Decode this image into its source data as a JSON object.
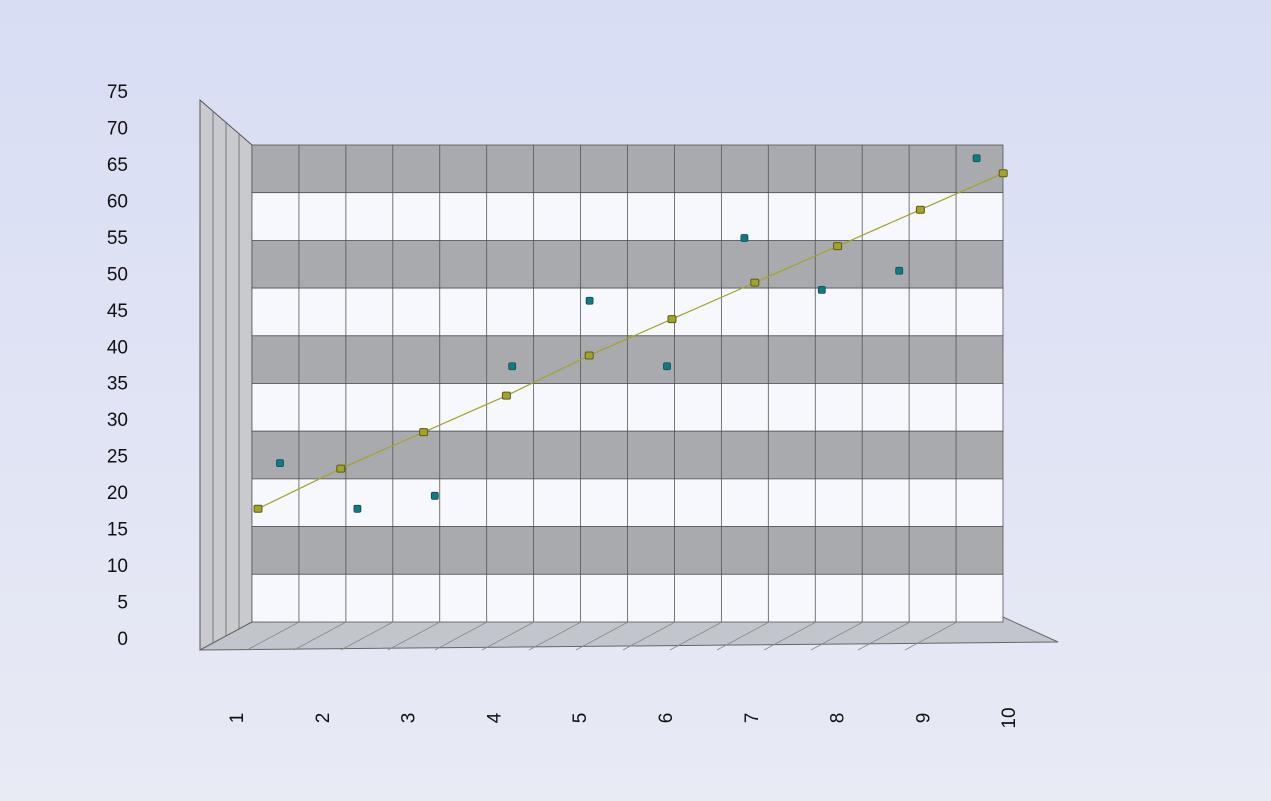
{
  "chart_data": {
    "type": "scatter-line",
    "categories": [
      "1",
      "2",
      "3",
      "4",
      "5",
      "6",
      "7",
      "8",
      "9",
      "10"
    ],
    "series": [
      {
        "color": "#127b82",
        "values": [
          23.3,
          16.6,
          18.5,
          37.5,
          47.1,
          37.5,
          56.3,
          48.7,
          51.5,
          68.0
        ]
      },
      {
        "color": "#a3a32a",
        "values": [
          18,
          23.5,
          28.5,
          33.5,
          39,
          44,
          49,
          54,
          59,
          64
        ]
      }
    ],
    "ylim": [
      0,
      75
    ],
    "yticks": [
      0,
      5,
      10,
      15,
      20,
      25,
      30,
      35,
      40,
      45,
      50,
      55,
      60,
      65,
      70,
      75
    ]
  }
}
